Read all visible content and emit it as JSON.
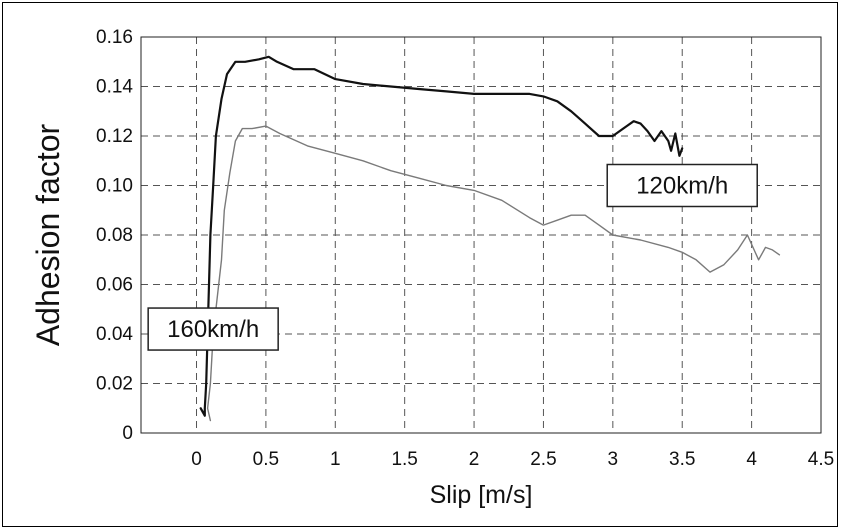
{
  "chart_data": {
    "type": "line",
    "title": "",
    "xlabel": "Slip [m/s]",
    "ylabel": "Adhesion factor",
    "xlim": [
      -0.4,
      4.5
    ],
    "ylim": [
      0,
      0.16
    ],
    "xticks": [
      0,
      0.5,
      1,
      1.5,
      2,
      2.5,
      3,
      3.5,
      4,
      4.5
    ],
    "yticks": [
      0,
      0.02,
      0.04,
      0.06,
      0.08,
      0.1,
      0.12,
      0.14,
      0.16
    ],
    "xtick_labels": [
      "0",
      "0.5",
      "1",
      "1.5",
      "2",
      "2.5",
      "3",
      "3.5",
      "4",
      "4.5"
    ],
    "ytick_labels": [
      "0",
      "0.02",
      "0.04",
      "0.06",
      "0.08",
      "0.10",
      "0.12",
      "0.14",
      "0.16"
    ],
    "grid": true,
    "series": [
      {
        "name": "120km/h",
        "color": "#111111",
        "x": [
          0.05,
          0.03,
          0.04,
          0.06,
          0.06,
          0.07,
          0.08,
          0.09,
          0.1,
          0.12,
          0.14,
          0.18,
          0.22,
          0.28,
          0.35,
          0.45,
          0.52,
          0.58,
          0.7,
          0.85,
          1.0,
          1.2,
          1.4,
          1.6,
          1.8,
          2.0,
          2.2,
          2.4,
          2.5,
          2.6,
          2.7,
          2.8,
          2.9,
          3.0,
          3.1,
          3.15,
          3.2,
          3.25,
          3.3,
          3.35,
          3.4,
          3.42,
          3.45,
          3.48,
          3.5
        ],
        "y": [
          0.008,
          0.01,
          0.009,
          0.007,
          0.01,
          0.02,
          0.04,
          0.06,
          0.08,
          0.1,
          0.12,
          0.135,
          0.145,
          0.15,
          0.15,
          0.151,
          0.152,
          0.15,
          0.147,
          0.147,
          0.143,
          0.141,
          0.14,
          0.139,
          0.138,
          0.137,
          0.137,
          0.137,
          0.136,
          0.134,
          0.13,
          0.125,
          0.12,
          0.12,
          0.124,
          0.126,
          0.125,
          0.122,
          0.118,
          0.122,
          0.118,
          0.114,
          0.121,
          0.112,
          0.115
        ]
      },
      {
        "name": "160km/h",
        "color": "#7a7a7a",
        "x": [
          0.1,
          0.08,
          0.1,
          0.11,
          0.12,
          0.14,
          0.16,
          0.18,
          0.2,
          0.24,
          0.28,
          0.33,
          0.4,
          0.5,
          0.6,
          0.8,
          1.0,
          1.2,
          1.4,
          1.6,
          1.8,
          2.0,
          2.2,
          2.4,
          2.5,
          2.6,
          2.7,
          2.8,
          2.9,
          3.0,
          3.2,
          3.4,
          3.5,
          3.6,
          3.7,
          3.8,
          3.9,
          3.97,
          4.05,
          4.1,
          4.15,
          4.2
        ],
        "y": [
          0.005,
          0.01,
          0.02,
          0.03,
          0.04,
          0.05,
          0.06,
          0.07,
          0.09,
          0.105,
          0.118,
          0.123,
          0.123,
          0.124,
          0.121,
          0.116,
          0.113,
          0.11,
          0.106,
          0.103,
          0.1,
          0.098,
          0.094,
          0.087,
          0.084,
          0.086,
          0.088,
          0.088,
          0.084,
          0.08,
          0.078,
          0.075,
          0.073,
          0.07,
          0.065,
          0.068,
          0.074,
          0.08,
          0.07,
          0.075,
          0.074,
          0.072
        ]
      }
    ],
    "annotations": [
      {
        "text": "120km/h",
        "series": "120km/h"
      },
      {
        "text": "160km/h",
        "series": "160km/h"
      }
    ]
  }
}
